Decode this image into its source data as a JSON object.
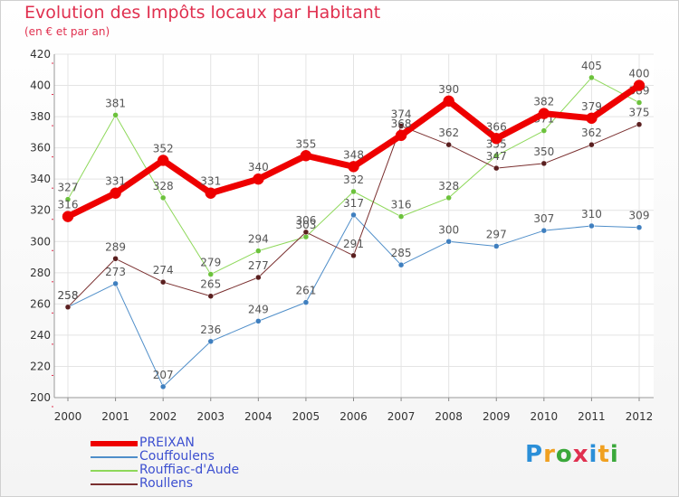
{
  "title": "Evolution des Impôts locaux par Habitant",
  "subtitle": "(en € et par an)",
  "logo": "Proxiti",
  "colors": {
    "title": "#e0304f",
    "grid": "#e4e4e4",
    "axis_text": "#333333",
    "label_text": "#555555",
    "legend_text": "#3d50d0"
  },
  "chart_data": {
    "type": "line",
    "title": "Evolution des Impôts locaux par Habitant",
    "subtitle": "(en € et par an)",
    "xlabel": "",
    "ylabel": "",
    "ylim": [
      200,
      420
    ],
    "y_ticks": [
      200,
      220,
      240,
      260,
      280,
      300,
      320,
      340,
      360,
      380,
      400,
      420
    ],
    "grid": true,
    "legend_position": "bottom-left",
    "x": [
      "2000",
      "2001",
      "2002",
      "2003",
      "2004",
      "2005",
      "2006",
      "2007",
      "2008",
      "2009",
      "2010",
      "2011",
      "2012"
    ],
    "series": [
      {
        "name": "Couffoulens",
        "color": "#4f8ec9",
        "marker": "#3f7fbf",
        "width": 1,
        "values": [
          258,
          273,
          207,
          236,
          249,
          261,
          317,
          285,
          300,
          297,
          307,
          310,
          309
        ]
      },
      {
        "name": "Rouffiac-d'Aude",
        "color": "#8ed85a",
        "marker": "#6cc23c",
        "width": 1,
        "values": [
          327,
          381,
          328,
          279,
          294,
          303,
          332,
          316,
          328,
          355,
          371,
          405,
          389
        ]
      },
      {
        "name": "Roullens",
        "color": "#7a2f2f",
        "marker": "#5a1f1f",
        "width": 1,
        "values": [
          258,
          289,
          274,
          265,
          277,
          306,
          291,
          374,
          362,
          347,
          350,
          362,
          375
        ]
      },
      {
        "name": "PREIXAN",
        "color": "#ee0000",
        "marker": "#ee0000",
        "width": 7,
        "values": [
          316,
          331,
          352,
          331,
          340,
          355,
          348,
          368,
          390,
          366,
          382,
          379,
          400
        ]
      }
    ],
    "legend": [
      "PREIXAN",
      "Couffoulens",
      "Rouffiac-d'Aude",
      "Roullens"
    ]
  }
}
